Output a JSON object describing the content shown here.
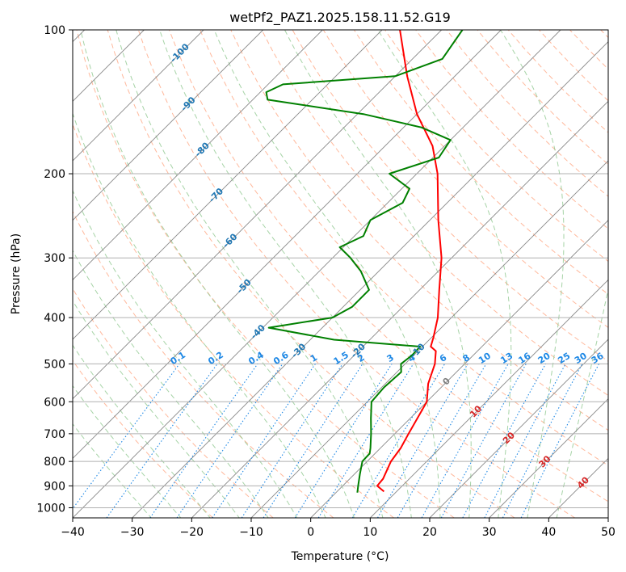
{
  "chart_data": {
    "type": "skewt",
    "title": "wetPf2_PAZ1.2025.158.11.52.G19",
    "xlabel": "Temperature (°C)",
    "ylabel": "Pressure (hPa)",
    "xlim": [
      -40,
      50
    ],
    "ylim": [
      1050,
      100
    ],
    "x_ticks": [
      -40,
      -30,
      -20,
      -10,
      0,
      10,
      20,
      30,
      40,
      50
    ],
    "y_ticks": [
      100,
      200,
      300,
      400,
      500,
      600,
      700,
      800,
      900,
      1000
    ],
    "grid": true,
    "colors": {
      "temperature": "#ff0000",
      "dewpoint": "#008000",
      "isotherm": "#888888",
      "dry_adiabat": "#ffa07a",
      "moist_adiabat": "#90c890",
      "mixing_ratio": "#1e88e5",
      "isotherm_label": "#1f77b4",
      "isotherm_label_zero": "#808080",
      "isotherm_label_warm": "#d62728"
    },
    "series": [
      {
        "name": "Temperature",
        "color": "#ff0000",
        "points": [
          {
            "p": 925,
            "t": 7.9
          },
          {
            "p": 900,
            "t": 5.8
          },
          {
            "p": 870,
            "t": 5.6
          },
          {
            "p": 800,
            "t": 4.0
          },
          {
            "p": 750,
            "t": 3.4
          },
          {
            "p": 700,
            "t": 2.3
          },
          {
            "p": 600,
            "t": 0.0
          },
          {
            "p": 550,
            "t": -2.8
          },
          {
            "p": 500,
            "t": -5.0
          },
          {
            "p": 470,
            "t": -7.0
          },
          {
            "p": 460,
            "t": -8.6
          },
          {
            "p": 440,
            "t": -9.7
          },
          {
            "p": 400,
            "t": -12.3
          },
          {
            "p": 350,
            "t": -16.7
          },
          {
            "p": 300,
            "t": -21.7
          },
          {
            "p": 250,
            "t": -28.6
          },
          {
            "p": 200,
            "t": -36.5
          },
          {
            "p": 175,
            "t": -42.0
          },
          {
            "p": 150,
            "t": -50.0
          },
          {
            "p": 125,
            "t": -58.0
          },
          {
            "p": 100,
            "t": -67.0
          }
        ]
      },
      {
        "name": "Dewpoint",
        "color": "#008000",
        "points": [
          {
            "p": 930,
            "t": 3.6
          },
          {
            "p": 900,
            "t": 2.6
          },
          {
            "p": 850,
            "t": 0.9
          },
          {
            "p": 800,
            "t": -0.8
          },
          {
            "p": 770,
            "t": -0.9
          },
          {
            "p": 750,
            "t": -1.7
          },
          {
            "p": 700,
            "t": -4.0
          },
          {
            "p": 650,
            "t": -6.6
          },
          {
            "p": 600,
            "t": -9.3
          },
          {
            "p": 560,
            "t": -9.6
          },
          {
            "p": 520,
            "t": -9.3
          },
          {
            "p": 500,
            "t": -10.7
          },
          {
            "p": 480,
            "t": -10.3
          },
          {
            "p": 460,
            "t": -10.4
          },
          {
            "p": 445,
            "t": -26.0
          },
          {
            "p": 420,
            "t": -39.0
          },
          {
            "p": 400,
            "t": -30.0
          },
          {
            "p": 380,
            "t": -28.5
          },
          {
            "p": 350,
            "t": -28.5
          },
          {
            "p": 320,
            "t": -33.0
          },
          {
            "p": 300,
            "t": -37.0
          },
          {
            "p": 285,
            "t": -40.6
          },
          {
            "p": 270,
            "t": -38.5
          },
          {
            "p": 250,
            "t": -40.0
          },
          {
            "p": 230,
            "t": -37.5
          },
          {
            "p": 215,
            "t": -38.7
          },
          {
            "p": 200,
            "t": -44.6
          },
          {
            "p": 185,
            "t": -39.0
          },
          {
            "p": 170,
            "t": -40.0
          },
          {
            "p": 160,
            "t": -47.0
          },
          {
            "p": 150,
            "t": -59.0
          },
          {
            "p": 140,
            "t": -77.5
          },
          {
            "p": 135,
            "t": -79.0
          },
          {
            "p": 130,
            "t": -77.5
          },
          {
            "p": 125,
            "t": -60.0
          },
          {
            "p": 115,
            "t": -55.0
          },
          {
            "p": 100,
            "t": -56.5
          }
        ]
      }
    ],
    "isotherm_labels": [
      {
        "t": -100,
        "text": "-100"
      },
      {
        "t": -90,
        "text": "-90"
      },
      {
        "t": -80,
        "text": "-80"
      },
      {
        "t": -70,
        "text": "-70"
      },
      {
        "t": -60,
        "text": "-60"
      },
      {
        "t": -50,
        "text": "-50"
      },
      {
        "t": -40,
        "text": "-40"
      },
      {
        "t": -30,
        "text": "-30"
      },
      {
        "t": -20,
        "text": "-20"
      },
      {
        "t": -10,
        "text": "-10"
      },
      {
        "t": 0,
        "text": "0"
      },
      {
        "t": 10,
        "text": "10"
      },
      {
        "t": 20,
        "text": "20"
      },
      {
        "t": 30,
        "text": "30"
      },
      {
        "t": 40,
        "text": "40"
      }
    ],
    "mixing_ratio_labels": [
      "0.1",
      "0.2",
      "0.4",
      "0.6",
      "1",
      "1.5",
      "2",
      "3",
      "4",
      "6",
      "8",
      "10",
      "13",
      "16",
      "20",
      "25",
      "30",
      "36"
    ]
  }
}
